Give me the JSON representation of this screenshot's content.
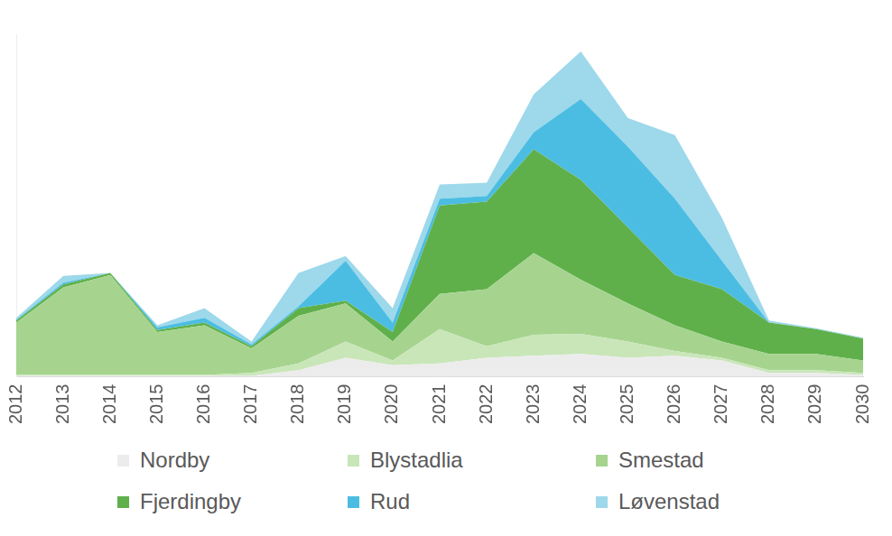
{
  "chart_data": {
    "type": "area",
    "categories": [
      "2012",
      "2013",
      "2014",
      "2015",
      "2016",
      "2017",
      "2018",
      "2019",
      "2020",
      "2021",
      "2022",
      "2023",
      "2024",
      "2025",
      "2026",
      "2027",
      "2028",
      "2029",
      "2030"
    ],
    "series": [
      {
        "name": "Nordby",
        "color": "#ececec",
        "values": [
          1,
          1,
          1,
          1,
          1,
          1,
          7,
          20,
          12,
          14,
          20,
          22,
          24,
          20,
          22,
          17,
          4,
          4,
          2
        ]
      },
      {
        "name": "Blystadlia",
        "color": "#c9e6b9",
        "values": [
          1,
          1,
          1,
          1,
          1,
          3,
          7,
          17,
          5,
          36,
          12,
          22,
          21,
          17,
          5,
          3,
          3,
          3,
          2
        ]
      },
      {
        "name": "Smestad",
        "color": "#a6d48f",
        "values": [
          55,
          92,
          105,
          45,
          52,
          26,
          50,
          40,
          20,
          37,
          60,
          86,
          57,
          40,
          27,
          17,
          17,
          17,
          13
        ]
      },
      {
        "name": "Fjerdingby",
        "color": "#5fb04a",
        "values": [
          2,
          3,
          2,
          2,
          3,
          2,
          8,
          3,
          10,
          93,
          92,
          109,
          105,
          80,
          53,
          55,
          33,
          26,
          23
        ]
      },
      {
        "name": "Rud",
        "color": "#4cbde2",
        "values": [
          1,
          2,
          0,
          3,
          5,
          2,
          2,
          42,
          10,
          7,
          6,
          18,
          85,
          85,
          80,
          30,
          0,
          0,
          0
        ]
      },
      {
        "name": "Løvenstad",
        "color": "#9dd8eb",
        "values": [
          2,
          7,
          0,
          2,
          10,
          3,
          35,
          5,
          15,
          15,
          14,
          40,
          50,
          30,
          67,
          45,
          2,
          1,
          1
        ]
      }
    ],
    "ylim": [
      0,
      360
    ],
    "stacked": true,
    "grid": false,
    "legend": "bottom",
    "tick_labels": "x"
  }
}
